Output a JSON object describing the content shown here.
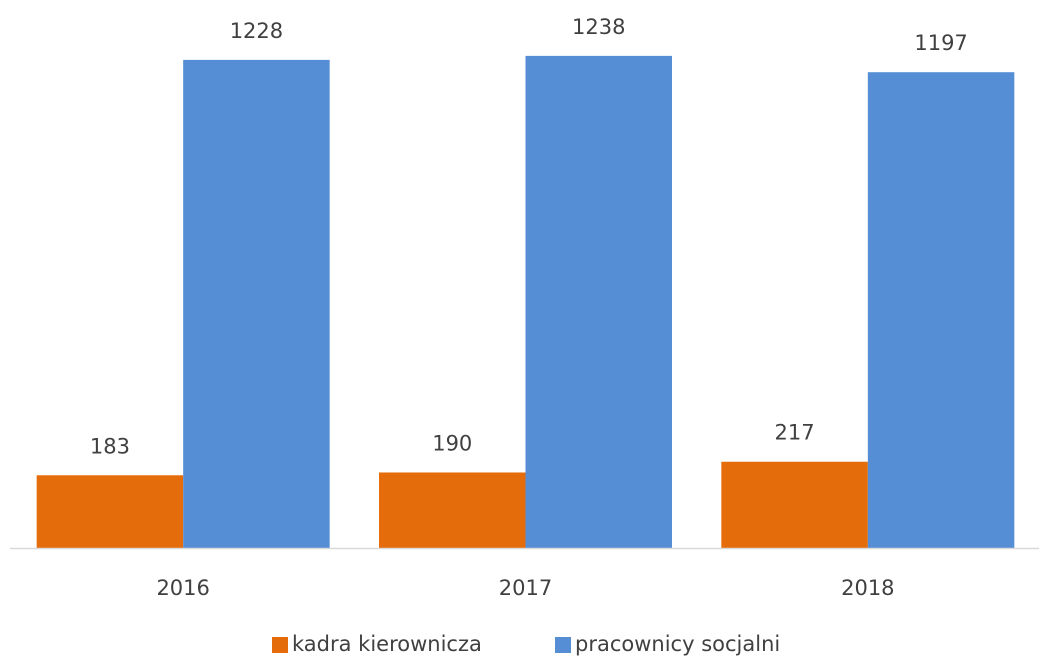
{
  "chart_data": {
    "type": "bar",
    "categories": [
      "2016",
      "2017",
      "2018"
    ],
    "series": [
      {
        "name": "kadra kierownicza",
        "color": "#e46c0a",
        "values": [
          183,
          190,
          217
        ]
      },
      {
        "name": "pracownicy socjalni",
        "color": "#558ed5",
        "values": [
          1228,
          1238,
          1197
        ]
      }
    ],
    "legend": "bottom"
  }
}
